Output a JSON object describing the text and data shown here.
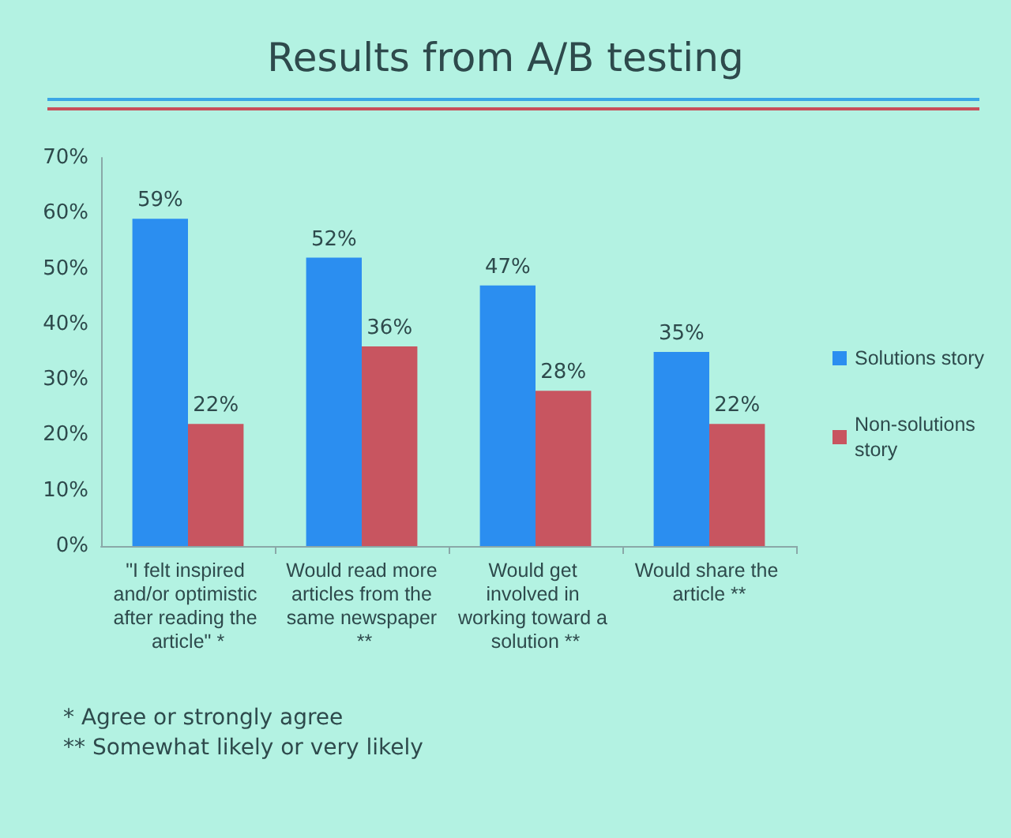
{
  "chart_data": {
    "type": "bar",
    "title": "Results from A/B testing",
    "categories": [
      "\"I felt inspired and/or optimistic after reading the article\" *",
      "Would read more articles from the same newspaper **",
      "Would get involved in working toward a solution **",
      "Would share the article **"
    ],
    "series": [
      {
        "name": "Solutions story",
        "color": "#2b8ef0",
        "values": [
          59,
          52,
          47,
          35
        ],
        "value_labels": [
          "59%",
          "52%",
          "47%",
          "35%"
        ]
      },
      {
        "name": "Non-solutions story",
        "color": "#c85560",
        "values": [
          22,
          36,
          28,
          22
        ],
        "value_labels": [
          "22%",
          "36%",
          "28%",
          "22%"
        ]
      }
    ],
    "ylim": [
      0,
      70
    ],
    "yticks": [
      {
        "value": 0,
        "label": "0%"
      },
      {
        "value": 10,
        "label": "10%"
      },
      {
        "value": 20,
        "label": "20%"
      },
      {
        "value": 30,
        "label": "30%"
      },
      {
        "value": 40,
        "label": "40%"
      },
      {
        "value": 50,
        "label": "50%"
      },
      {
        "value": 60,
        "label": "60%"
      },
      {
        "value": 70,
        "label": "70%"
      }
    ],
    "grid": false,
    "legend": "right",
    "annotations": [
      "* Agree or strongly agree",
      "** Somewhat likely or very likely"
    ]
  }
}
